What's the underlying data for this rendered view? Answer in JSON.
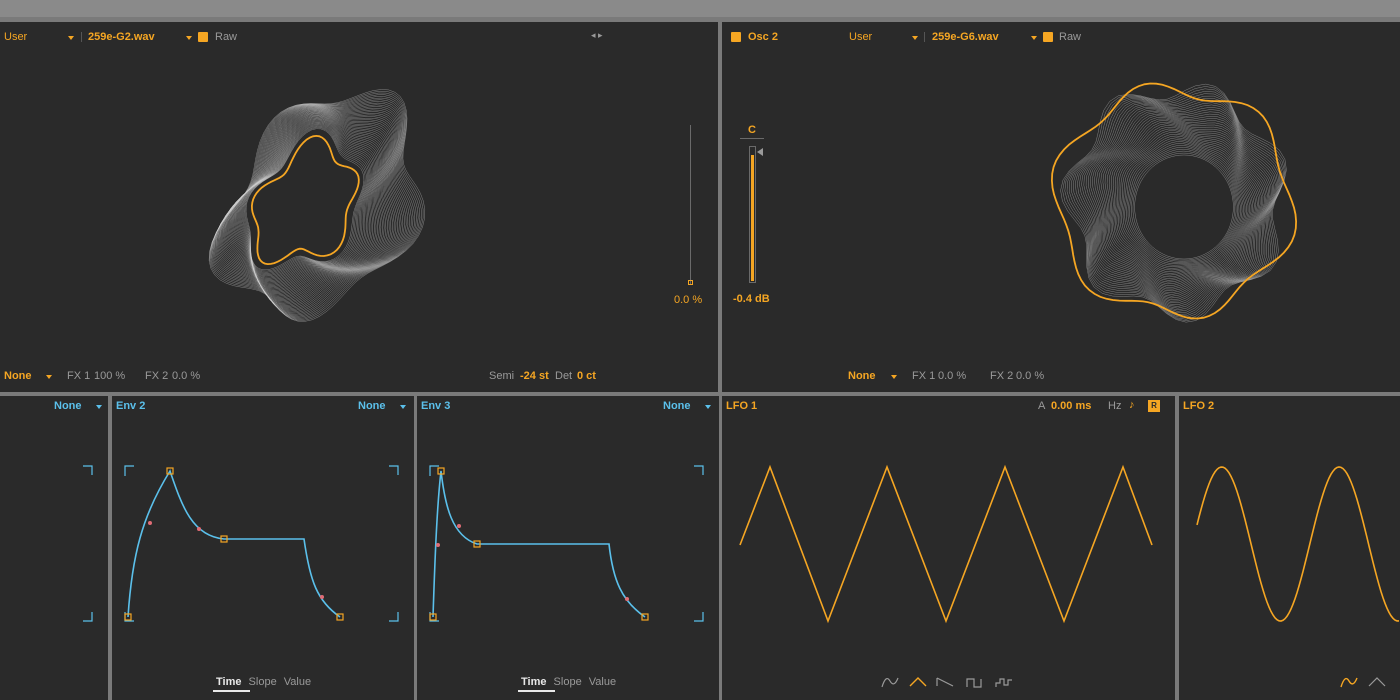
{
  "osc1": {
    "source": "User",
    "file": "259e-G2.wav",
    "raw_label": "Raw",
    "fader_value": "0.0 %",
    "filter": "None",
    "fx1_label": "FX 1",
    "fx1_value": "100 %",
    "fx2_label": "FX 2",
    "fx2_value": "0.0 %",
    "semi_label": "Semi",
    "semi_value": "-24 st",
    "det_label": "Det",
    "det_value": "0 ct"
  },
  "osc2": {
    "name": "Osc 2",
    "source": "User",
    "file": "259e-G6.wav",
    "raw_label": "Raw",
    "pan_label": "C",
    "gain_value": "-0.4 dB",
    "filter": "None",
    "fx1_label": "FX 1",
    "fx1_value": "0.0 %",
    "fx2_label": "FX 2",
    "fx2_value": "0.0 %"
  },
  "env1": {
    "target": "None"
  },
  "env2": {
    "name": "Env 2",
    "target": "None",
    "tabs": [
      "Time",
      "Slope",
      "Value"
    ]
  },
  "env3": {
    "name": "Env 3",
    "target": "None",
    "tabs": [
      "Time",
      "Slope",
      "Value"
    ]
  },
  "lfo1": {
    "name": "LFO 1",
    "a_label": "A",
    "a_value": "0.00 ms",
    "hz_label": "Hz",
    "note_icon": "note-icon",
    "retrig_label": "R",
    "shapes": [
      "sine-icon",
      "triangle-icon",
      "saw-icon",
      "square-icon",
      "random-icon"
    ]
  },
  "lfo2": {
    "name": "LFO 2"
  },
  "colors": {
    "accent": "#f5a623",
    "env": "#5bc0eb",
    "panel": "#2a2a2a",
    "text_dim": "#9a9a9a"
  }
}
